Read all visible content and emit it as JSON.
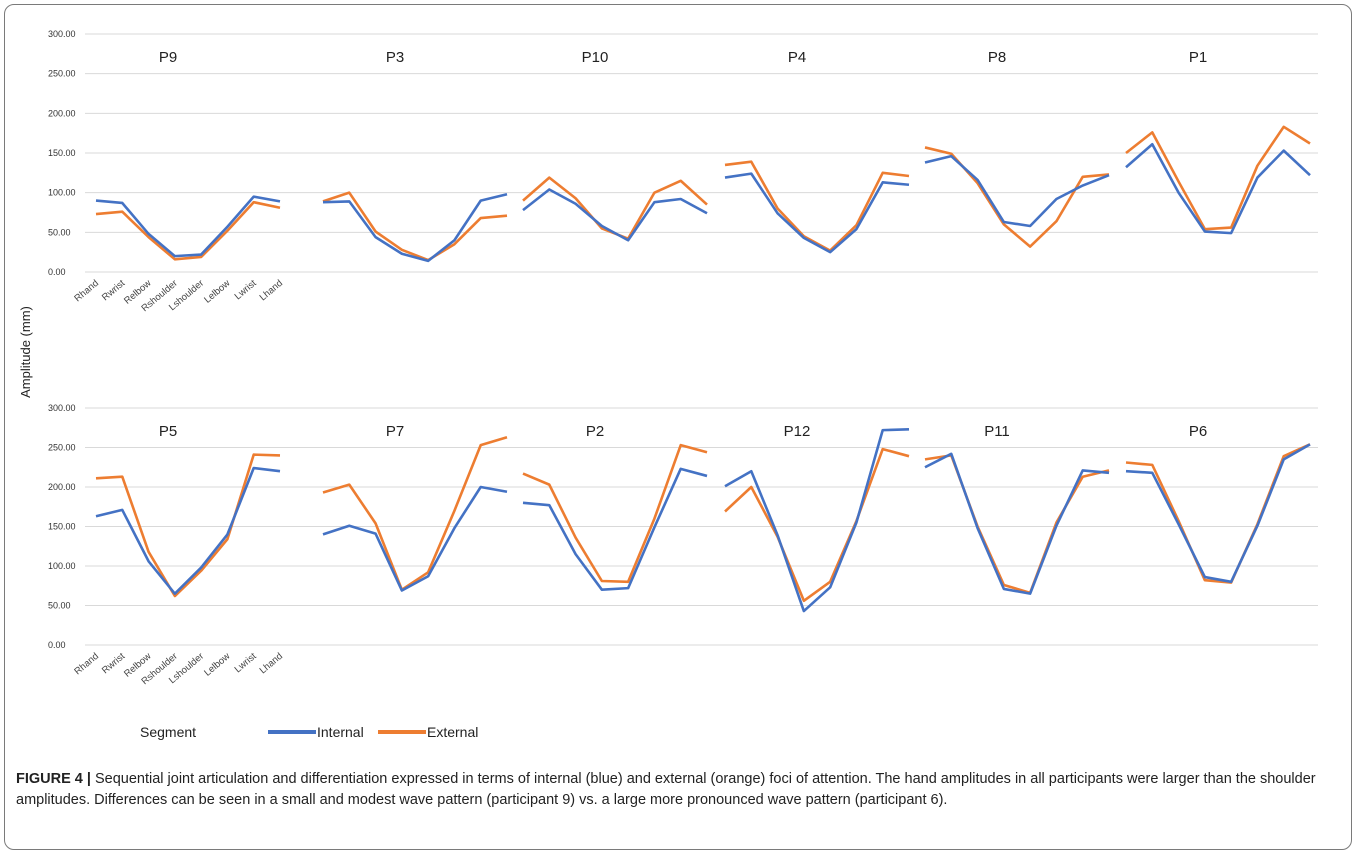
{
  "chart_data": {
    "type": "line",
    "ylabel": "Amplitude (mm)",
    "xlabel": "Segment",
    "ylim": [
      0,
      300
    ],
    "yticks": [
      "0.00",
      "50.00",
      "100.00",
      "150.00",
      "200.00",
      "250.00",
      "300.00"
    ],
    "categories": [
      "Rhand",
      "Rwrist",
      "Relbow",
      "Rshoulder",
      "Lshoulder",
      "Lelbow",
      "Lwrist",
      "Lhand"
    ],
    "grid": true,
    "legend_position": "bottom",
    "legend": [
      {
        "name": "Internal",
        "color": "#4472C4"
      },
      {
        "name": "External",
        "color": "#ED7D31"
      }
    ],
    "panels": [
      {
        "title": "P9",
        "series": [
          {
            "name": "Internal",
            "values": [
              90,
              87,
              48,
              20,
              22,
              57,
              95,
              89
            ]
          },
          {
            "name": "External",
            "values": [
              73,
              76,
              44,
              16,
              19,
              52,
              88,
              81
            ]
          }
        ]
      },
      {
        "title": "P3",
        "series": [
          {
            "name": "Internal",
            "values": [
              88,
              89,
              44,
              23,
              14,
              40,
              90,
              98
            ]
          },
          {
            "name": "External",
            "values": [
              89,
              100,
              51,
              28,
              15,
              35,
              68,
              71
            ]
          }
        ]
      },
      {
        "title": "P10",
        "series": [
          {
            "name": "Internal",
            "values": [
              78,
              104,
              86,
              58,
              40,
              88,
              92,
              74
            ]
          },
          {
            "name": "External",
            "values": [
              90,
              119,
              93,
              55,
              42,
              100,
              115,
              85
            ]
          }
        ]
      },
      {
        "title": "P4",
        "series": [
          {
            "name": "Internal",
            "values": [
              119,
              124,
              74,
              43,
              25,
              54,
              113,
              110
            ]
          },
          {
            "name": "External",
            "values": [
              135,
              139,
              80,
              45,
              27,
              59,
              125,
              121
            ]
          }
        ]
      },
      {
        "title": "P8",
        "series": [
          {
            "name": "Internal",
            "values": [
              138,
              146,
              116,
              63,
              58,
              92,
              109,
              122
            ]
          },
          {
            "name": "External",
            "values": [
              157,
              149,
              112,
              60,
              32,
              64,
              120,
              123
            ]
          }
        ]
      },
      {
        "title": "P1",
        "series": [
          {
            "name": "Internal",
            "values": [
              132,
              161,
              100,
              51,
              49,
              119,
              153,
              122
            ]
          },
          {
            "name": "External",
            "values": [
              150,
              176,
              114,
              54,
              56,
              134,
              183,
              162
            ]
          }
        ]
      },
      {
        "title": "P5",
        "series": [
          {
            "name": "Internal",
            "values": [
              163,
              171,
              106,
              65,
              98,
              140,
              224,
              220
            ]
          },
          {
            "name": "External",
            "values": [
              211,
              213,
              118,
              62,
              94,
              134,
              241,
              240
            ]
          }
        ]
      },
      {
        "title": "P7",
        "series": [
          {
            "name": "Internal",
            "values": [
              140,
              151,
              141,
              69,
              87,
              148,
              200,
              194
            ]
          },
          {
            "name": "External",
            "values": [
              193,
              203,
              154,
              70,
              92,
              170,
              253,
              263
            ]
          }
        ]
      },
      {
        "title": "P2",
        "series": [
          {
            "name": "Internal",
            "values": [
              180,
              177,
              115,
              70,
              72,
              149,
              223,
              214
            ]
          },
          {
            "name": "External",
            "values": [
              217,
              203,
              136,
              81,
              80,
              160,
              253,
              244
            ]
          }
        ]
      },
      {
        "title": "P12",
        "series": [
          {
            "name": "Internal",
            "values": [
              201,
              220,
              139,
              43,
              73,
              155,
              272,
              273
            ]
          },
          {
            "name": "External",
            "values": [
              169,
              200,
              137,
              56,
              80,
              157,
              248,
              239
            ]
          }
        ]
      },
      {
        "title": "P11",
        "series": [
          {
            "name": "Internal",
            "values": [
              225,
              242,
              148,
              71,
              65,
              151,
              221,
              218
            ]
          },
          {
            "name": "External",
            "values": [
              235,
              240,
              150,
              76,
              66,
              155,
              213,
              221
            ]
          }
        ]
      },
      {
        "title": "P6",
        "series": [
          {
            "name": "Internal",
            "values": [
              220,
              218,
              153,
              86,
              80,
              151,
              235,
              254
            ]
          },
          {
            "name": "External",
            "values": [
              231,
              228,
              157,
              82,
              79,
              153,
              239,
              254
            ]
          }
        ]
      }
    ]
  },
  "caption": {
    "label": "FIGURE 4 |",
    "text": " Sequential joint articulation and differentiation expressed in terms of internal (blue) and external (orange) foci of attention. The hand amplitudes in all participants were larger than the shoulder amplitudes. Differences can be seen in a small and modest wave pattern (participant 9) vs. a large more pronounced wave pattern (participant 6)."
  }
}
